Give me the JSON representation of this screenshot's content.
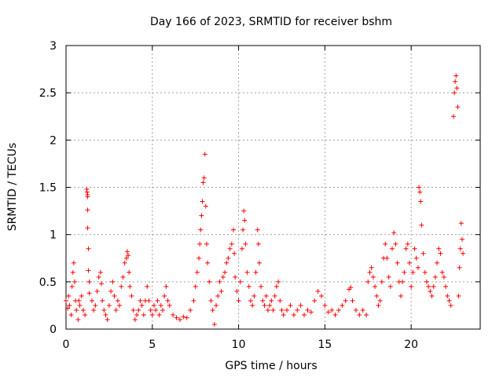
{
  "chart_data": {
    "type": "scatter",
    "title": "Day 166 of 2023, SRMTID for receiver bshm",
    "xlabel": "GPS time / hours",
    "ylabel": "SRMTID / TECUs",
    "xlim": [
      0,
      24
    ],
    "ylim": [
      0,
      3
    ],
    "xticks": [
      "0",
      "5",
      "10",
      "15",
      "20"
    ],
    "xtick_values": [
      0,
      5,
      10,
      15,
      20
    ],
    "yticks": [
      "0",
      "0.5",
      "1",
      "1.5",
      "2",
      "2.5",
      "3"
    ],
    "ytick_values": [
      0,
      0.5,
      1,
      1.5,
      2,
      2.5,
      3
    ],
    "grid": true,
    "marker": "+",
    "color": "#ff0000",
    "series": [
      {
        "name": "SRMTID",
        "points": [
          [
            0.0,
            0.3
          ],
          [
            0.1,
            0.22
          ],
          [
            0.15,
            0.35
          ],
          [
            0.2,
            0.25
          ],
          [
            0.3,
            0.15
          ],
          [
            0.35,
            0.45
          ],
          [
            0.4,
            0.6
          ],
          [
            0.45,
            0.7
          ],
          [
            0.5,
            0.5
          ],
          [
            0.55,
            0.3
          ],
          [
            0.6,
            0.2
          ],
          [
            0.7,
            0.1
          ],
          [
            0.75,
            0.3
          ],
          [
            0.8,
            0.25
          ],
          [
            0.9,
            0.35
          ],
          [
            1.0,
            0.2
          ],
          [
            1.1,
            0.15
          ],
          [
            1.2,
            1.48
          ],
          [
            1.22,
            1.45
          ],
          [
            1.25,
            1.42
          ],
          [
            1.25,
            1.4
          ],
          [
            1.25,
            1.26
          ],
          [
            1.25,
            1.07
          ],
          [
            1.3,
            0.85
          ],
          [
            1.3,
            0.62
          ],
          [
            1.35,
            0.5
          ],
          [
            1.35,
            0.38
          ],
          [
            1.5,
            0.3
          ],
          [
            1.6,
            0.2
          ],
          [
            1.7,
            0.25
          ],
          [
            1.8,
            0.4
          ],
          [
            1.9,
            0.55
          ],
          [
            2.0,
            0.6
          ],
          [
            2.05,
            0.48
          ],
          [
            2.1,
            0.3
          ],
          [
            2.2,
            0.2
          ],
          [
            2.3,
            0.15
          ],
          [
            2.4,
            0.1
          ],
          [
            2.5,
            0.25
          ],
          [
            2.6,
            0.4
          ],
          [
            2.7,
            0.5
          ],
          [
            2.8,
            0.35
          ],
          [
            2.9,
            0.2
          ],
          [
            3.0,
            0.3
          ],
          [
            3.1,
            0.25
          ],
          [
            3.2,
            0.45
          ],
          [
            3.3,
            0.55
          ],
          [
            3.4,
            0.7
          ],
          [
            3.5,
            0.75
          ],
          [
            3.55,
            0.82
          ],
          [
            3.6,
            0.78
          ],
          [
            3.65,
            0.6
          ],
          [
            3.7,
            0.45
          ],
          [
            3.8,
            0.35
          ],
          [
            3.9,
            0.2
          ],
          [
            4.0,
            0.1
          ],
          [
            4.1,
            0.15
          ],
          [
            4.2,
            0.2
          ],
          [
            4.3,
            0.3
          ],
          [
            4.4,
            0.25
          ],
          [
            4.5,
            0.15
          ],
          [
            4.6,
            0.3
          ],
          [
            4.7,
            0.45
          ],
          [
            4.8,
            0.3
          ],
          [
            4.9,
            0.2
          ],
          [
            5.0,
            0.15
          ],
          [
            5.1,
            0.25
          ],
          [
            5.2,
            0.2
          ],
          [
            5.3,
            0.3
          ],
          [
            5.4,
            0.15
          ],
          [
            5.5,
            0.25
          ],
          [
            5.6,
            0.2
          ],
          [
            5.7,
            0.35
          ],
          [
            5.8,
            0.45
          ],
          [
            5.9,
            0.3
          ],
          [
            6.0,
            0.25
          ],
          [
            6.2,
            0.15
          ],
          [
            6.4,
            0.12
          ],
          [
            6.6,
            0.1
          ],
          [
            6.8,
            0.13
          ],
          [
            7.0,
            0.12
          ],
          [
            7.2,
            0.2
          ],
          [
            7.4,
            0.3
          ],
          [
            7.5,
            0.45
          ],
          [
            7.6,
            0.6
          ],
          [
            7.7,
            0.75
          ],
          [
            7.75,
            0.9
          ],
          [
            7.8,
            1.05
          ],
          [
            7.85,
            1.2
          ],
          [
            7.9,
            1.35
          ],
          [
            7.95,
            1.55
          ],
          [
            8.0,
            1.6
          ],
          [
            8.05,
            1.85
          ],
          [
            8.1,
            1.3
          ],
          [
            8.15,
            0.9
          ],
          [
            8.2,
            0.7
          ],
          [
            8.3,
            0.5
          ],
          [
            8.4,
            0.3
          ],
          [
            8.5,
            0.2
          ],
          [
            8.6,
            0.05
          ],
          [
            8.7,
            0.25
          ],
          [
            8.8,
            0.35
          ],
          [
            8.9,
            0.5
          ],
          [
            9.0,
            0.4
          ],
          [
            9.1,
            0.55
          ],
          [
            9.2,
            0.6
          ],
          [
            9.3,
            0.7
          ],
          [
            9.4,
            0.75
          ],
          [
            9.5,
            0.85
          ],
          [
            9.6,
            0.9
          ],
          [
            9.7,
            1.05
          ],
          [
            9.75,
            0.8
          ],
          [
            9.8,
            0.55
          ],
          [
            9.9,
            0.4
          ],
          [
            10.0,
            0.3
          ],
          [
            10.1,
            0.5
          ],
          [
            10.2,
            0.85
          ],
          [
            10.25,
            1.05
          ],
          [
            10.3,
            1.25
          ],
          [
            10.35,
            1.15
          ],
          [
            10.4,
            0.9
          ],
          [
            10.5,
            0.6
          ],
          [
            10.6,
            0.45
          ],
          [
            10.7,
            0.3
          ],
          [
            10.8,
            0.25
          ],
          [
            10.9,
            0.35
          ],
          [
            11.0,
            0.6
          ],
          [
            11.1,
            1.05
          ],
          [
            11.15,
            0.9
          ],
          [
            11.2,
            0.7
          ],
          [
            11.3,
            0.45
          ],
          [
            11.4,
            0.3
          ],
          [
            11.5,
            0.25
          ],
          [
            11.6,
            0.35
          ],
          [
            11.7,
            0.2
          ],
          [
            11.8,
            0.25
          ],
          [
            11.9,
            0.3
          ],
          [
            12.0,
            0.2
          ],
          [
            12.1,
            0.35
          ],
          [
            12.2,
            0.45
          ],
          [
            12.3,
            0.5
          ],
          [
            12.4,
            0.3
          ],
          [
            12.5,
            0.2
          ],
          [
            12.6,
            0.15
          ],
          [
            12.8,
            0.2
          ],
          [
            13.0,
            0.25
          ],
          [
            13.2,
            0.15
          ],
          [
            13.4,
            0.2
          ],
          [
            13.6,
            0.25
          ],
          [
            13.8,
            0.15
          ],
          [
            14.0,
            0.2
          ],
          [
            14.2,
            0.18
          ],
          [
            14.4,
            0.3
          ],
          [
            14.6,
            0.4
          ],
          [
            14.8,
            0.35
          ],
          [
            15.0,
            0.25
          ],
          [
            15.2,
            0.18
          ],
          [
            15.4,
            0.2
          ],
          [
            15.6,
            0.15
          ],
          [
            15.8,
            0.2
          ],
          [
            16.0,
            0.25
          ],
          [
            16.2,
            0.3
          ],
          [
            16.4,
            0.42
          ],
          [
            16.5,
            0.44
          ],
          [
            16.6,
            0.3
          ],
          [
            16.8,
            0.2
          ],
          [
            17.0,
            0.15
          ],
          [
            17.2,
            0.2
          ],
          [
            17.4,
            0.15
          ],
          [
            17.5,
            0.5
          ],
          [
            17.6,
            0.6
          ],
          [
            17.7,
            0.65
          ],
          [
            17.8,
            0.55
          ],
          [
            17.9,
            0.45
          ],
          [
            18.0,
            0.35
          ],
          [
            18.1,
            0.25
          ],
          [
            18.2,
            0.3
          ],
          [
            18.3,
            0.5
          ],
          [
            18.4,
            0.75
          ],
          [
            18.5,
            0.9
          ],
          [
            18.6,
            0.75
          ],
          [
            18.7,
            0.55
          ],
          [
            18.8,
            0.45
          ],
          [
            18.9,
            0.85
          ],
          [
            19.0,
            1.02
          ],
          [
            19.1,
            0.9
          ],
          [
            19.2,
            0.7
          ],
          [
            19.3,
            0.5
          ],
          [
            19.4,
            0.35
          ],
          [
            19.5,
            0.5
          ],
          [
            19.6,
            0.6
          ],
          [
            19.7,
            0.85
          ],
          [
            19.8,
            0.9
          ],
          [
            19.9,
            0.7
          ],
          [
            20.0,
            0.45
          ],
          [
            20.1,
            0.6
          ],
          [
            20.2,
            0.85
          ],
          [
            20.3,
            0.75
          ],
          [
            20.4,
            0.65
          ],
          [
            20.45,
            1.5
          ],
          [
            20.5,
            1.45
          ],
          [
            20.55,
            1.35
          ],
          [
            20.6,
            1.1
          ],
          [
            20.7,
            0.8
          ],
          [
            20.8,
            0.6
          ],
          [
            20.9,
            0.5
          ],
          [
            21.0,
            0.45
          ],
          [
            21.1,
            0.4
          ],
          [
            21.2,
            0.35
          ],
          [
            21.3,
            0.45
          ],
          [
            21.4,
            0.55
          ],
          [
            21.5,
            0.7
          ],
          [
            21.6,
            0.85
          ],
          [
            21.7,
            0.8
          ],
          [
            21.8,
            0.6
          ],
          [
            21.9,
            0.55
          ],
          [
            22.0,
            0.45
          ],
          [
            22.1,
            0.35
          ],
          [
            22.2,
            0.3
          ],
          [
            22.3,
            0.25
          ],
          [
            22.45,
            2.25
          ],
          [
            22.5,
            2.5
          ],
          [
            22.55,
            2.62
          ],
          [
            22.6,
            2.68
          ],
          [
            22.65,
            2.55
          ],
          [
            22.7,
            2.35
          ],
          [
            22.75,
            0.35
          ],
          [
            22.8,
            0.65
          ],
          [
            22.85,
            0.85
          ],
          [
            22.9,
            1.12
          ],
          [
            22.95,
            0.95
          ],
          [
            23.0,
            0.8
          ]
        ]
      }
    ]
  }
}
